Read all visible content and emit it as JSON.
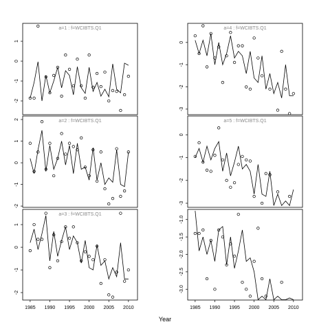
{
  "xlabel": "Year",
  "chart_data": [
    {
      "type": "line",
      "title": "a=1 : f=WCIBTS.Q1",
      "x": [
        1985,
        1986,
        1987,
        1988,
        1989,
        1990,
        1991,
        1992,
        1993,
        1994,
        1995,
        1996,
        1997,
        1998,
        1999,
        2000,
        2001,
        2002,
        2003,
        2004,
        2005,
        2006,
        2007,
        2008,
        2009,
        2010
      ],
      "xlim": [
        1983.1,
        2012.3
      ],
      "ylim": [
        -2.69,
        1.9
      ],
      "yticks": [
        1,
        0,
        -1,
        -2
      ],
      "series": [
        {
          "style": "line",
          "color": "#000000",
          "values": [
            -1.86,
            -1.07,
            -0.03,
            -2.0,
            -0.72,
            -1.59,
            -1.0,
            -0.31,
            -1.34,
            -0.48,
            -0.72,
            -1.69,
            -0.28,
            -1.34,
            -1.62,
            -0.31,
            -1.52,
            -1.07,
            -1.76,
            -1.41,
            -1.79,
            -0.14,
            -1.41,
            -1.59,
            -0.1,
            -0.21
          ]
        },
        {
          "style": "points",
          "color": "#000000",
          "values": [
            -1.86,
            -1.86,
            1.76,
            null,
            -0.79,
            -1.59,
            -0.72,
            -0.31,
            -1.76,
            0.31,
            -0.41,
            -1.24,
            0.1,
            -1.24,
            -1.86,
            0.31,
            -1.31,
            -0.62,
            -1.28,
            -0.55,
            -2.0,
            -1.48,
            -1.52,
            -2.48,
            -1.69,
            -0.76
          ]
        }
      ]
    },
    {
      "type": "line",
      "title": "a=2 : f=WCIBTS.Q1",
      "x": [
        1985,
        1986,
        1987,
        1988,
        1989,
        1990,
        1991,
        1992,
        1993,
        1994,
        1995,
        1996,
        1997,
        1998,
        1999,
        2000,
        2001,
        2002,
        2003,
        2004,
        2005,
        2006,
        2007,
        2008,
        2009,
        2010
      ],
      "xlim": [
        1983.1,
        2012.3
      ],
      "ylim": [
        -2.06,
        2.16
      ],
      "yticks": [
        2,
        1,
        0,
        -1,
        -2
      ],
      "series": [
        {
          "style": "line",
          "color": "#000000",
          "values": [
            0.2,
            -0.5,
            0.6,
            1.5,
            -0.4,
            0.8,
            -0.3,
            0.2,
            1.0,
            -0.1,
            0.8,
            -0.5,
            0.9,
            -0.3,
            -0.2,
            -0.8,
            0.7,
            -0.8,
            0.0,
            -1.0,
            -0.7,
            -0.9,
            0.6,
            -1.0,
            -1.1,
            0.5
          ]
        },
        {
          "style": "points",
          "color": "#000000",
          "values": [
            0.9,
            -0.4,
            0.5,
            1.9,
            -0.3,
            0.9,
            -0.6,
            0.2,
            1.35,
            0.4,
            0.9,
            0.75,
            0.6,
            1.15,
            -0.2,
            -0.6,
            0.6,
            -0.85,
            0.5,
            -1.2,
            -1.9,
            -1.65,
            0.65,
            -1.55,
            -1.3,
            0.5
          ]
        }
      ]
    },
    {
      "type": "line",
      "title": "a=3 : f=WCIBTS.Q1",
      "x": [
        1985,
        1986,
        1987,
        1988,
        1989,
        1990,
        1991,
        1992,
        1993,
        1994,
        1995,
        1996,
        1997,
        1998,
        1999,
        2000,
        2001,
        2002,
        2003,
        2004,
        2005,
        2006,
        2007,
        2008,
        2009,
        2010
      ],
      "xlim": [
        1983.1,
        2012.3
      ],
      "ylim": [
        -2.33,
        1.67
      ],
      "yticks": [
        1,
        0,
        -1,
        -2
      ],
      "xticks": [
        1985,
        1990,
        1995,
        2000,
        2005,
        2010
      ],
      "series": [
        {
          "style": "line",
          "color": "#000000",
          "values": [
            0.2,
            0.8,
            -0.1,
            0.6,
            1.4,
            -0.6,
            0.7,
            -0.4,
            0.3,
            0.9,
            -0.1,
            0.5,
            0.2,
            -0.7,
            0.3,
            -0.9,
            -1.0,
            0.1,
            -0.8,
            -0.6,
            -1.4,
            -0.9,
            -1.3,
            0.2,
            -1.4,
            -1.4
          ]
        },
        {
          "style": "points",
          "color": "#000000",
          "values": [
            -0.15,
            1.0,
            0.35,
            0.35,
            1.5,
            -0.9,
            0.55,
            -0.6,
            0.25,
            0.9,
            0.4,
            0.9,
            0.2,
            -0.6,
            -0.2,
            -0.4,
            -0.55,
            0.05,
            -1.6,
            -0.55,
            -2.1,
            -2.2,
            -1.1,
            1.5,
            -1.5,
            -1.0
          ]
        }
      ]
    },
    {
      "type": "line",
      "title": "a=4 : f=WCIBTS.Q1",
      "x": [
        1985,
        1986,
        1987,
        1988,
        1989,
        1990,
        1991,
        1992,
        1993,
        1994,
        1995,
        1996,
        1997,
        1998,
        1999,
        2000,
        2001,
        2002,
        2003,
        2004,
        2005,
        2006,
        2007,
        2008,
        2009,
        2010
      ],
      "xlim": [
        1983.1,
        2012.3
      ],
      "ylim": [
        -3.25,
        0.86
      ],
      "yticks": [
        0,
        -1,
        -2,
        -3
      ],
      "series": [
        {
          "style": "line",
          "color": "#000000",
          "values": [
            0.1,
            -0.5,
            0.1,
            -0.6,
            0.4,
            -1.0,
            0.0,
            -1.0,
            -0.5,
            0.3,
            -0.7,
            -0.4,
            -0.6,
            -1.4,
            -0.4,
            -1.6,
            -1.8,
            -0.6,
            -2.1,
            -1.4,
            -2.3,
            -1.8,
            -2.5,
            -1.0,
            -2.4,
            -2.4
          ]
        },
        {
          "style": "points",
          "color": "#000000",
          "values": [
            0.3,
            -0.5,
            0.75,
            -1.1,
            0.4,
            -0.7,
            -0.2,
            -1.8,
            -0.6,
            0.45,
            -0.9,
            -0.15,
            -0.15,
            -2.0,
            -2.1,
            0.2,
            -0.7,
            -1.5,
            null,
            -2.1,
            null,
            -3.05,
            -0.4,
            -2.1,
            -3.2,
            -2.3
          ]
        }
      ]
    },
    {
      "type": "line",
      "title": "a=5 : f=WCIBTS.Q1",
      "x": [
        1985,
        1986,
        1987,
        1988,
        1989,
        1990,
        1991,
        1992,
        1993,
        1994,
        1995,
        1996,
        1997,
        1998,
        1999,
        2000,
        2001,
        2002,
        2003,
        2004,
        2005,
        2006,
        2007,
        2008,
        2009,
        2010
      ],
      "xlim": [
        1983.1,
        2012.3
      ],
      "ylim": [
        -3.18,
        0.82
      ],
      "yticks": [
        0,
        -1,
        -2,
        -3
      ],
      "series": [
        {
          "style": "line",
          "color": "#000000",
          "values": [
            -1.0,
            -0.6,
            -1.2,
            -0.5,
            -1.1,
            -0.6,
            -0.3,
            -1.6,
            -0.8,
            -1.8,
            -1.2,
            -0.5,
            -1.5,
            -1.3,
            -1.6,
            -2.6,
            -1.3,
            -2.6,
            -2.7,
            -1.6,
            -3.1,
            -2.6,
            -3.1,
            -2.9,
            -3.1,
            -2.4
          ]
        },
        {
          "style": "points",
          "color": "#000000",
          "values": [
            -0.95,
            -0.35,
            -1.2,
            -1.55,
            -1.6,
            -0.9,
            0.3,
            -1.1,
            -2.0,
            -2.3,
            -2.1,
            -1.3,
            -0.95,
            -1.1,
            -1.15,
            -2.7,
            null,
            -3.0,
            -1.7,
            -1.75,
            null,
            -2.5,
            null,
            null,
            -2.7,
            null
          ]
        }
      ]
    },
    {
      "type": "line",
      "x": [
        1985,
        1986,
        1987,
        1988,
        1989,
        1990,
        1991,
        1992,
        1993,
        1994,
        1995,
        1996,
        1997,
        1998,
        1999,
        2000,
        2001,
        2002,
        2003,
        2004,
        2005,
        2006,
        2007,
        2008,
        2009,
        2010
      ],
      "xlim": [
        1983.1,
        2012.3
      ],
      "ylim": [
        -3.31,
        -0.71
      ],
      "xticks": [
        1985,
        1990,
        1995,
        2000,
        2005,
        2010
      ],
      "yticks": [
        {
          "value": -1,
          "label": "-1.0"
        },
        {
          "value": -1.5,
          "label": "-1.5"
        },
        {
          "value": -2,
          "label": "-2.0"
        },
        {
          "value": -2.5,
          "label": "-2.5"
        },
        {
          "value": -3,
          "label": "-3.0"
        }
      ],
      "series": [
        {
          "style": "line",
          "color": "#000000",
          "values": [
            -0.75,
            -1.9,
            -1.5,
            -2.0,
            -1.6,
            -2.2,
            -1.3,
            -1.2,
            -2.3,
            -1.5,
            -2.4,
            -1.9,
            -1.3,
            -2.2,
            -2.1,
            -2.5,
            -3.3,
            -3.2,
            -3.3,
            -2.7,
            -3.3,
            -3.2,
            -3.3,
            -3.3,
            -3.25,
            -3.3
          ]
        },
        {
          "style": "points",
          "color": "#000000",
          "values": [
            -1.4,
            -1.4,
            -1.3,
            -2.7,
            -1.6,
            -3.0,
            -1.3,
            -1.5,
            -2.3,
            -1.7,
            -2.05,
            -0.85,
            -2.8,
            -3.0,
            -3.2,
            -2.2,
            -1.25,
            -2.7,
            -3.2,
            null,
            null,
            null,
            -2.8,
            null,
            null,
            null
          ]
        }
      ]
    }
  ]
}
